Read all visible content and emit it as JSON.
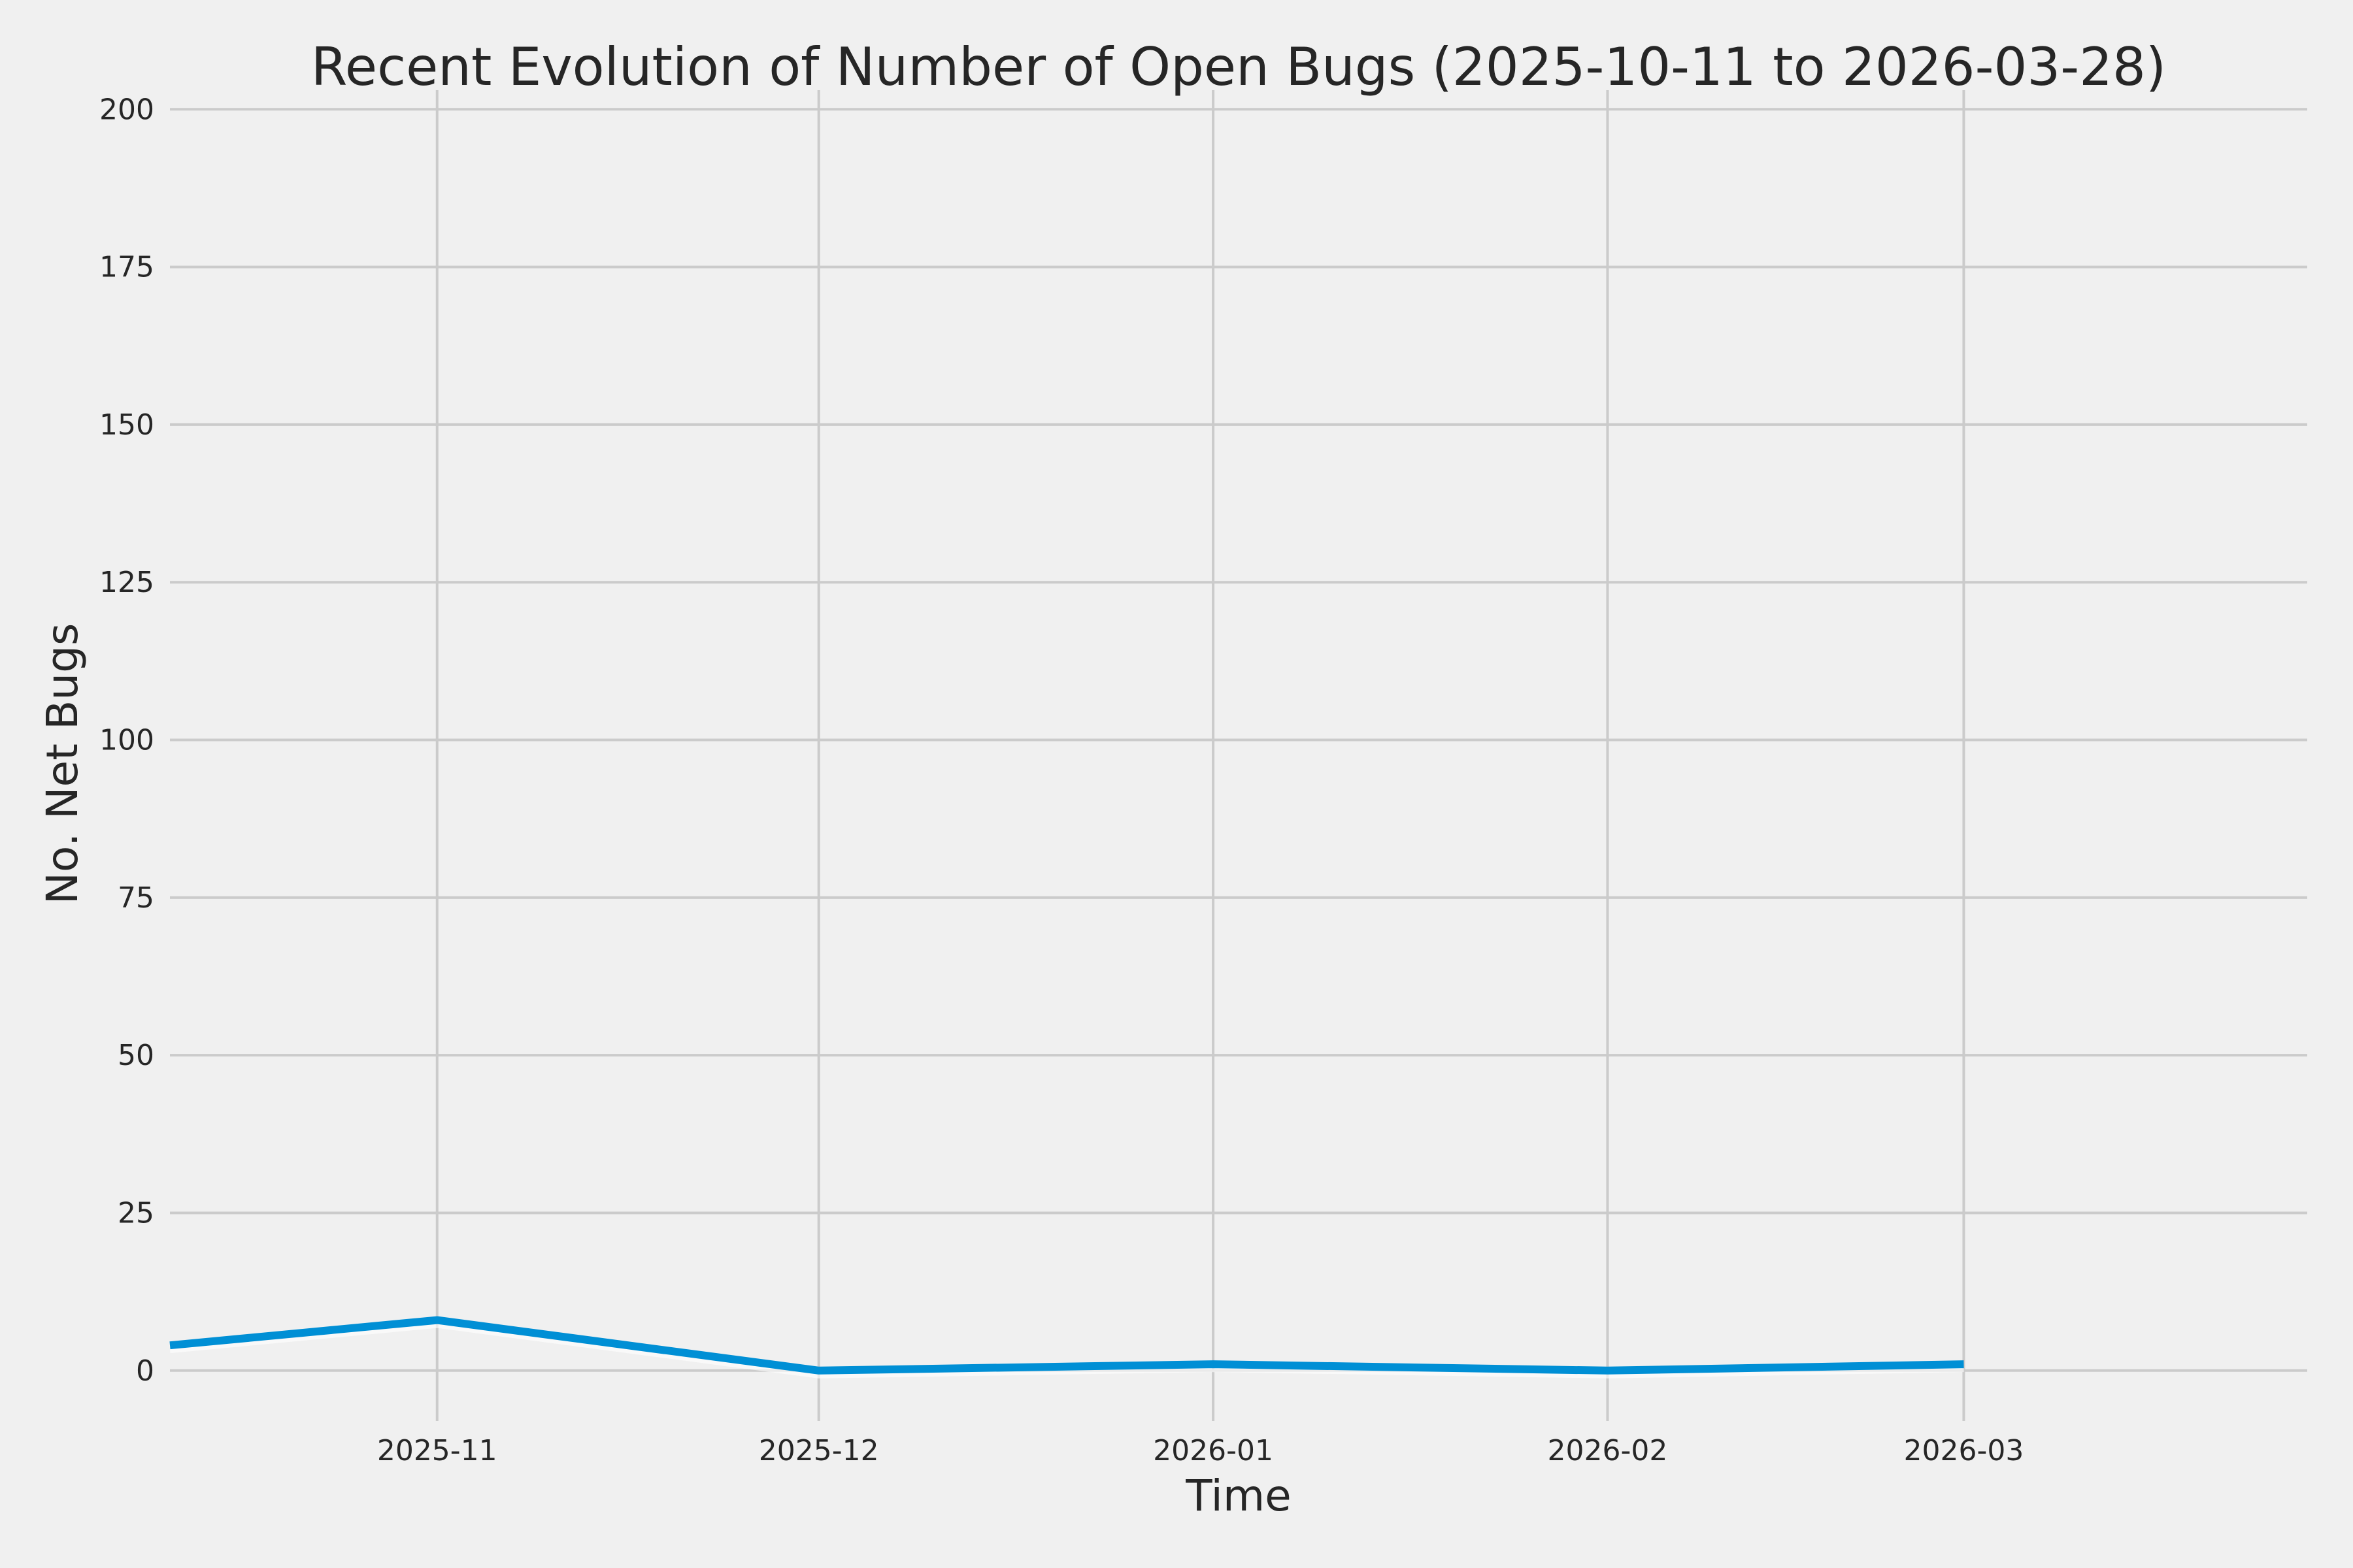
{
  "chart_data": {
    "type": "line",
    "title": "Recent Evolution of Number of Open Bugs (2025-10-11 to 2026-03-28)",
    "xlabel": "Time",
    "ylabel": "No. Net Bugs",
    "x_axis_type": "date",
    "xlim": [
      "2025-10-11",
      "2026-03-28"
    ],
    "ylim": [
      -8,
      202
    ],
    "y_ticks": [
      0,
      25,
      50,
      75,
      100,
      125,
      150,
      175,
      200
    ],
    "x_ticks": [
      {
        "date": "2025-11-01",
        "label": "2025-11"
      },
      {
        "date": "2025-12-01",
        "label": "2025-12"
      },
      {
        "date": "2026-01-01",
        "label": "2026-01"
      },
      {
        "date": "2026-02-01",
        "label": "2026-02"
      },
      {
        "date": "2026-03-01",
        "label": "2026-03"
      }
    ],
    "grid": true,
    "series": [
      {
        "color": "#008fd5",
        "x": [
          "2025-10-11",
          "2025-11-01",
          "2025-12-01",
          "2026-01-01",
          "2026-02-01",
          "2026-03-01"
        ],
        "values": [
          4,
          8,
          0,
          1,
          0,
          1
        ]
      }
    ]
  }
}
